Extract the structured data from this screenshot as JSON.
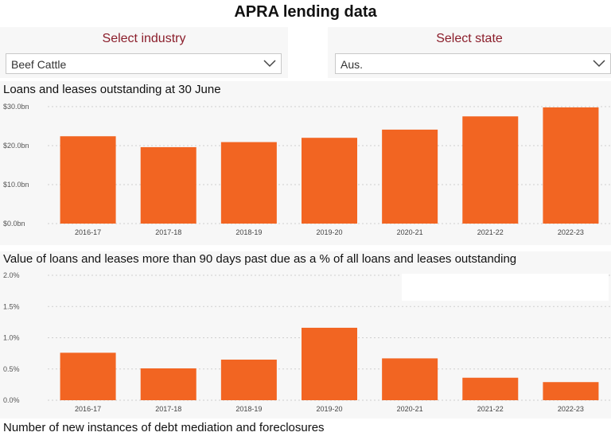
{
  "title": "APRA lending data",
  "slicers": {
    "industry": {
      "label": "Select industry",
      "value": "Beef Cattle"
    },
    "state": {
      "label": "Select state",
      "value": "Aus."
    }
  },
  "sections": {
    "loans_title": "Loans and leases outstanding at 30 June",
    "past_due_title": "Value of loans and leases more than 90 days past due as a % of all loans and leases outstanding",
    "mediation_title": "Number of new instances of debt mediation and foreclosures"
  },
  "colors": {
    "bar": "#f26522",
    "slicer_label": "#8b1e2b",
    "panel": "#f7f7f7"
  },
  "icons": {
    "dropdown": "chevron-down-icon"
  },
  "chart_data": [
    {
      "type": "bar",
      "categories": [
        "2016-17",
        "2017-18",
        "2018-19",
        "2019-20",
        "2020-21",
        "2021-22",
        "2022-23"
      ],
      "values": [
        22.4,
        19.6,
        20.9,
        22.0,
        24.1,
        27.5,
        29.8
      ],
      "yticks": [
        "$0.0bn",
        "$10.0bn",
        "$20.0bn",
        "$30.0bn"
      ],
      "ytick_values": [
        0,
        10,
        20,
        30
      ],
      "ylim": [
        0,
        30
      ],
      "grid": true
    },
    {
      "type": "bar",
      "categories": [
        "2016-17",
        "2017-18",
        "2018-19",
        "2019-20",
        "2020-21",
        "2021-22",
        "2022-23"
      ],
      "values": [
        0.76,
        0.51,
        0.65,
        1.16,
        0.67,
        0.36,
        0.29
      ],
      "yticks": [
        "0.0%",
        "0.5%",
        "1.0%",
        "1.5%",
        "2.0%"
      ],
      "ytick_values": [
        0,
        0.5,
        1.0,
        1.5,
        2.0
      ],
      "ylim": [
        0,
        2.0
      ],
      "grid": true
    }
  ]
}
